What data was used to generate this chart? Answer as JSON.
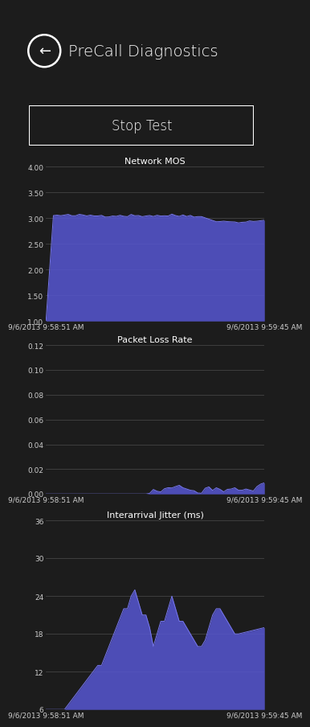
{
  "bg_color": "#1c1c1c",
  "title": "PreCall Diagnostics",
  "button_text": "Stop Test",
  "time_start": "9/6/2013 9:58:51 AM",
  "time_end": "9/6/2013 9:59:45 AM",
  "grid_color": "#444444",
  "fill_color": "#5555cc",
  "text_color": "#ffffff",
  "tick_color": "#cccccc",
  "chart1_title": "Network MOS",
  "chart1_yticks": [
    1.0,
    1.5,
    2.0,
    2.5,
    3.0,
    3.5,
    4.0
  ],
  "chart1_ylim": [
    1.0,
    4.0
  ],
  "chart2_title": "Packet Loss Rate",
  "chart2_yticks": [
    0.0,
    0.02,
    0.04,
    0.06,
    0.08,
    0.1,
    0.12
  ],
  "chart2_ylim": [
    0.0,
    0.12
  ],
  "chart3_title": "Interarrival Jitter (ms)",
  "chart3_yticks": [
    6,
    12,
    18,
    24,
    30,
    36
  ],
  "chart3_ylim": [
    6,
    36
  ],
  "n_points": 60
}
